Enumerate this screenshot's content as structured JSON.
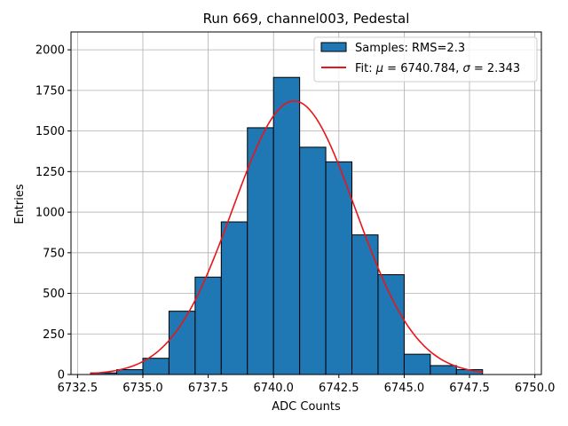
{
  "chart_data": {
    "type": "bar",
    "title": "Run 669, channel003, Pedestal",
    "xlabel": "ADC Counts",
    "ylabel": "Entries",
    "xlim": [
      6732.25,
      6750.25
    ],
    "ylim": [
      0,
      2110
    ],
    "xticks": [
      6732.5,
      6735.0,
      6737.5,
      6740.0,
      6742.5,
      6745.0,
      6747.5,
      6750.0
    ],
    "xtick_labels": [
      "6732.5",
      "6735.0",
      "6737.5",
      "6740.0",
      "6742.5",
      "6745.0",
      "6747.5",
      "6750.0"
    ],
    "yticks": [
      0,
      250,
      500,
      750,
      1000,
      1250,
      1500,
      1750,
      2000
    ],
    "ytick_labels": [
      "0",
      "250",
      "500",
      "750",
      "1000",
      "1250",
      "1500",
      "1750",
      "2000"
    ],
    "grid": true,
    "legend_position": "top-right",
    "bin_edges": [
      6733,
      6734,
      6735,
      6736,
      6737,
      6738,
      6739,
      6740,
      6741,
      6742,
      6743,
      6744,
      6745,
      6746,
      6747,
      6748
    ],
    "series": [
      {
        "name": "Samples: RMS=2.3",
        "kind": "histogram",
        "color": "#1f77b4",
        "edgecolor": "#000000",
        "values": [
          10,
          30,
          100,
          390,
          600,
          940,
          1520,
          1830,
          1400,
          1310,
          860,
          615,
          125,
          55,
          30
        ]
      },
      {
        "name": "Fit: μ = 6740.784, σ = 2.343",
        "kind": "gaussian-fit",
        "color": "#e8161a",
        "mu": 6740.784,
        "sigma": 2.343,
        "amplitude": 1685,
        "x_range": [
          6733,
          6748
        ]
      }
    ],
    "legend": [
      {
        "label": "Samples: RMS=2.3",
        "symbol": "patch",
        "color": "#1f77b4"
      },
      {
        "label_prefix": "Fit: ",
        "mu_symbol": "μ",
        "mu_value": " = 6740.784, ",
        "sigma_symbol": "σ",
        "sigma_value": " = 2.343",
        "symbol": "line",
        "color": "#e8161a"
      }
    ]
  }
}
